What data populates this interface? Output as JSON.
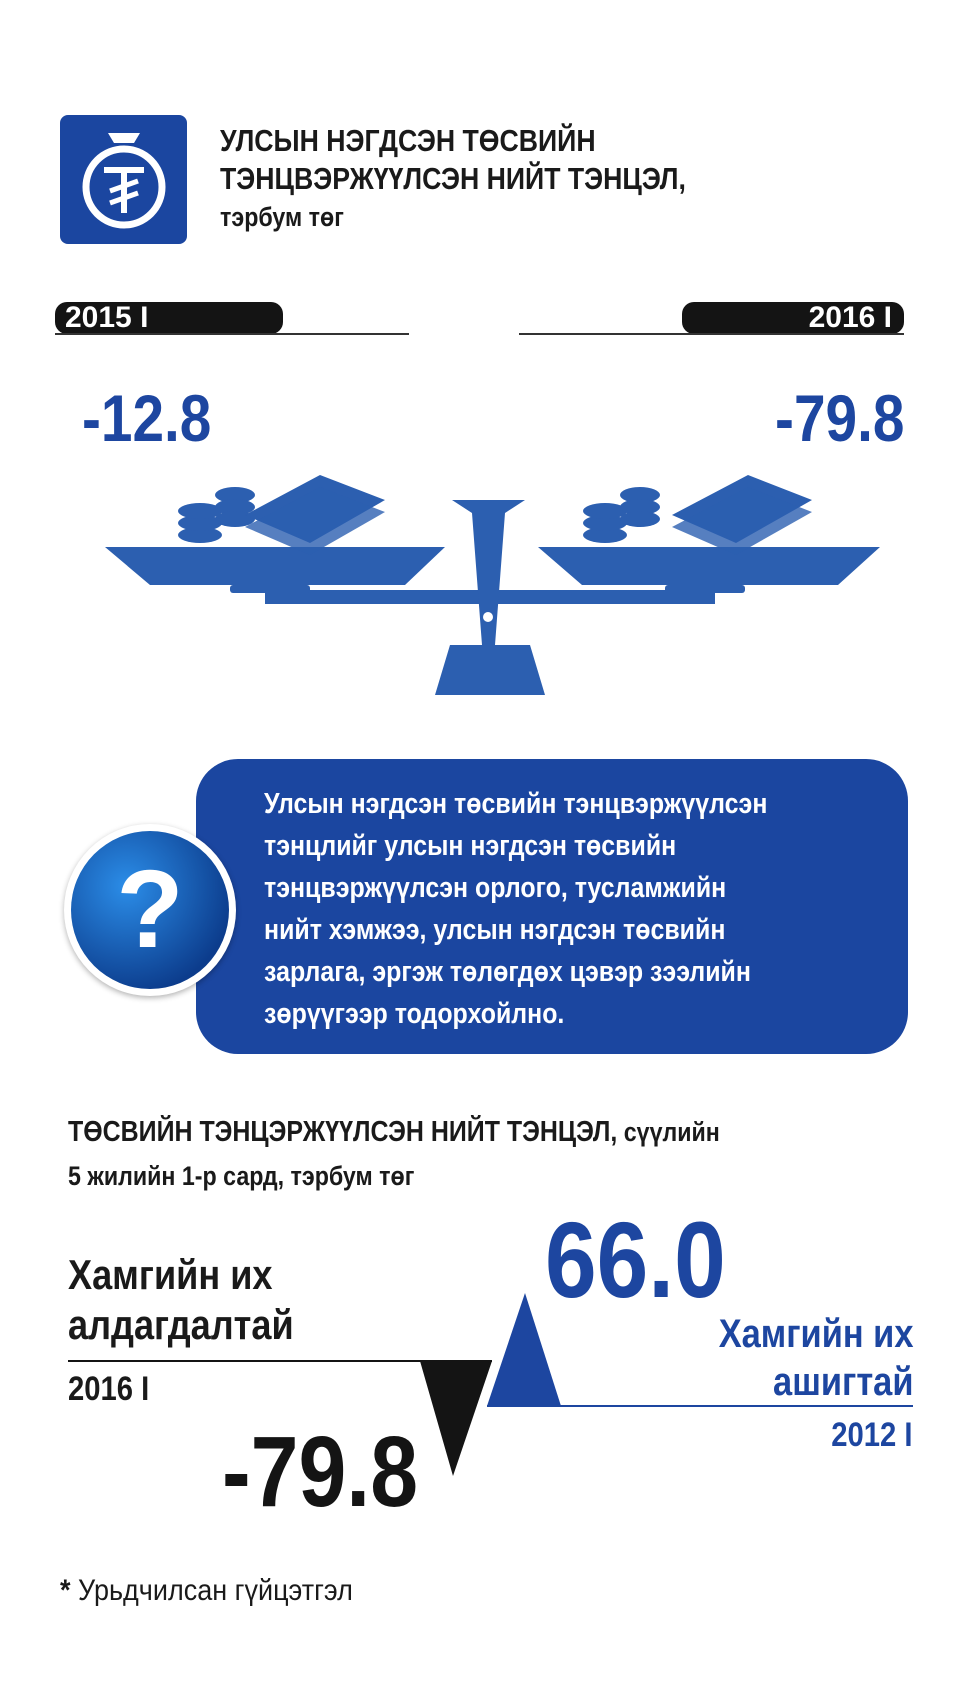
{
  "header": {
    "logo_icon": "tugrik-money-bag-icon",
    "title_line1": "УЛСЫН НЭГДСЭН ТӨСВИЙН",
    "title_line2": "ТЭНЦВЭРЖҮҮЛСЭН НИЙТ ТЭНЦЭЛ,",
    "unit": "тэрбум төг"
  },
  "comparison": {
    "left": {
      "period": "2015 I",
      "value": "-12.8"
    },
    "right": {
      "period": "2016 I",
      "value": "-79.8"
    },
    "scale_icon": "balance-scale-icon"
  },
  "definition": {
    "icon": "question-mark-icon",
    "lines": [
      "Улсын нэгдсэн төсвийн тэнцвэржүүлсэн",
      "тэнцлийг улсын нэгдсэн төсвийн",
      "тэнцвэржүүлсэн орлого, тусламжийн",
      "нийт хэмжээ, улсын нэгдсэн төсвийн",
      "зарлага, эргэж төлөгдөх цэвэр зээлийн",
      "зөрүүгээр тодорхойлно."
    ]
  },
  "section": {
    "title_bold": "ТӨСВИЙН ТЭНЦЭРЖҮҮЛСЭН НИЙТ ТЭНЦЭЛ,",
    "title_rest": " сүүлийн",
    "title_line2": "5 жилийн 1-р сард, тэрбум төг"
  },
  "extremes": {
    "loss": {
      "label_line1": "Хамгийн их",
      "label_line2": "алдагдалтай",
      "period": "2016 I",
      "value": "-79.8"
    },
    "profit": {
      "label_line1": "Хамгийн их",
      "label_line2": "ашигтай",
      "period": "2012 I",
      "value": "66.0"
    }
  },
  "footnote": {
    "asterisk": "*",
    "text": "Урьдчилсан гүйцэтгэл"
  },
  "colors": {
    "brand_blue": "#1d46a0",
    "black": "#141414"
  }
}
